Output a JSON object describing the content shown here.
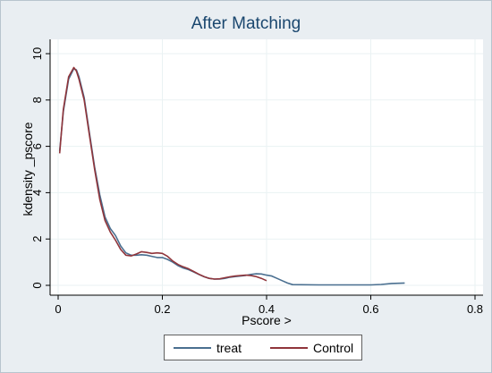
{
  "chart_data": {
    "type": "line",
    "title": "After Matching",
    "xlabel": "Pscore >",
    "ylabel": "kdensity _pscore",
    "xlim": [
      0,
      0.8
    ],
    "ylim": [
      0,
      10
    ],
    "xticks": [
      0,
      0.2,
      0.4,
      0.6,
      0.8
    ],
    "xtick_labels": [
      "0",
      "0.2",
      "0.4",
      "0.6",
      "0.8"
    ],
    "yticks": [
      0,
      2,
      4,
      6,
      8,
      10
    ],
    "ytick_labels": [
      "0",
      "2",
      "4",
      "6",
      "8",
      "10"
    ],
    "grid": true,
    "legend_position": "bottom",
    "series": [
      {
        "name": "treat",
        "color": "#4a6f90",
        "x": [
          0.003,
          0.01,
          0.02,
          0.03,
          0.035,
          0.04,
          0.05,
          0.06,
          0.07,
          0.08,
          0.09,
          0.1,
          0.11,
          0.12,
          0.13,
          0.14,
          0.15,
          0.16,
          0.17,
          0.18,
          0.19,
          0.2,
          0.21,
          0.22,
          0.23,
          0.24,
          0.25,
          0.26,
          0.27,
          0.28,
          0.29,
          0.3,
          0.31,
          0.32,
          0.33,
          0.34,
          0.35,
          0.36,
          0.37,
          0.38,
          0.39,
          0.4,
          0.41,
          0.42,
          0.43,
          0.44,
          0.45,
          0.5,
          0.55,
          0.6,
          0.62,
          0.64,
          0.665
        ],
        "y": [
          5.8,
          7.5,
          8.9,
          9.35,
          9.3,
          9.0,
          8.1,
          6.6,
          5.1,
          3.9,
          2.95,
          2.45,
          2.15,
          1.7,
          1.4,
          1.3,
          1.3,
          1.32,
          1.3,
          1.25,
          1.2,
          1.2,
          1.12,
          1.0,
          0.85,
          0.75,
          0.68,
          0.58,
          0.47,
          0.37,
          0.3,
          0.27,
          0.27,
          0.3,
          0.35,
          0.38,
          0.4,
          0.43,
          0.47,
          0.5,
          0.49,
          0.44,
          0.4,
          0.3,
          0.2,
          0.1,
          0.03,
          0.02,
          0.02,
          0.02,
          0.04,
          0.08,
          0.1
        ]
      },
      {
        "name": "Control",
        "color": "#90353b",
        "x": [
          0.003,
          0.01,
          0.02,
          0.03,
          0.035,
          0.04,
          0.05,
          0.06,
          0.07,
          0.08,
          0.09,
          0.1,
          0.11,
          0.12,
          0.13,
          0.14,
          0.15,
          0.16,
          0.17,
          0.18,
          0.19,
          0.2,
          0.21,
          0.22,
          0.23,
          0.24,
          0.25,
          0.26,
          0.27,
          0.28,
          0.29,
          0.3,
          0.31,
          0.32,
          0.33,
          0.34,
          0.35,
          0.36,
          0.37,
          0.38,
          0.39,
          0.4
        ],
        "y": [
          5.7,
          7.6,
          9.0,
          9.4,
          9.25,
          8.9,
          8.0,
          6.5,
          5.0,
          3.7,
          2.8,
          2.3,
          1.95,
          1.55,
          1.3,
          1.27,
          1.35,
          1.45,
          1.42,
          1.38,
          1.4,
          1.38,
          1.25,
          1.05,
          0.9,
          0.8,
          0.72,
          0.6,
          0.48,
          0.38,
          0.3,
          0.27,
          0.28,
          0.33,
          0.37,
          0.4,
          0.42,
          0.44,
          0.42,
          0.38,
          0.3,
          0.2
        ]
      }
    ]
  }
}
